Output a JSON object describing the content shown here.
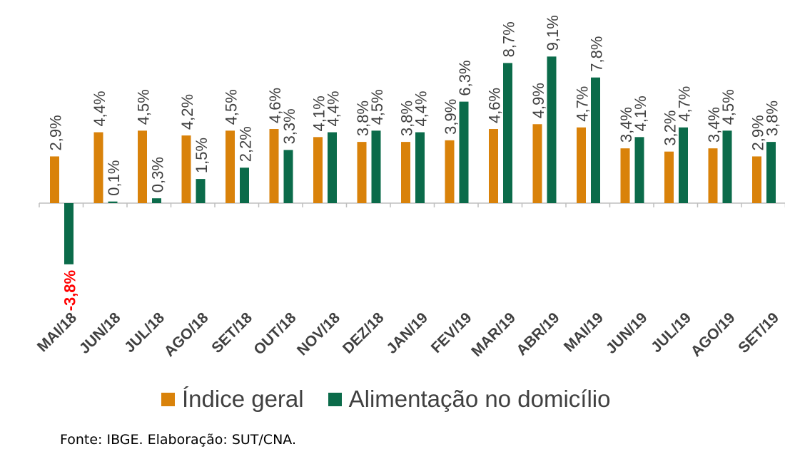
{
  "chart_data": {
    "type": "bar",
    "categories": [
      "MAI/18",
      "JUN/18",
      "JUL/18",
      "AGO/18",
      "SET/18",
      "OUT/18",
      "NOV/18",
      "DEZ/18",
      "JAN/19",
      "FEV/19",
      "MAR/19",
      "ABR/19",
      "MAI/19",
      "JUN/19",
      "JUL/19",
      "AGO/19",
      "SET/19"
    ],
    "series": [
      {
        "name": "Índice geral",
        "color": "#D9820A",
        "values": [
          2.9,
          4.4,
          4.5,
          4.2,
          4.5,
          4.6,
          4.1,
          3.8,
          3.8,
          3.9,
          4.6,
          4.9,
          4.7,
          3.4,
          3.2,
          3.4,
          2.9
        ],
        "labels": [
          "2,9%",
          "4,4%",
          "4,5%",
          "4,2%",
          "4,5%",
          "4,6%",
          "4,1%",
          "3,8%",
          "3,8%",
          "3,9%",
          "4,6%",
          "4,9%",
          "4,7%",
          "3,4%",
          "3,2%",
          "3,4%",
          "2,9%"
        ]
      },
      {
        "name": "Alimentação no domicílio",
        "color": "#0B6B4A",
        "values": [
          -3.8,
          0.1,
          0.3,
          1.5,
          2.2,
          3.3,
          4.4,
          4.5,
          4.4,
          6.3,
          8.7,
          9.1,
          7.8,
          4.1,
          4.7,
          4.5,
          3.8
        ],
        "labels": [
          "-3,8%",
          "0,1%",
          "0,3%",
          "1,5%",
          "2,2%",
          "3,3%",
          "4,4%",
          "4,5%",
          "4,4%",
          "6,3%",
          "8,7%",
          "9,1%",
          "7,8%",
          "4,1%",
          "4,7%",
          "4,5%",
          "3,8%"
        ]
      }
    ],
    "negative_label_color": "#FF0000",
    "ylim": [
      -3.8,
      9.1
    ],
    "grid": false,
    "legend_position": "bottom"
  },
  "legend": {
    "geral": "Índice geral",
    "alimentacao": "Alimentação no domicílio"
  },
  "source": "Fonte: IBGE. Elaboração: SUT/CNA."
}
